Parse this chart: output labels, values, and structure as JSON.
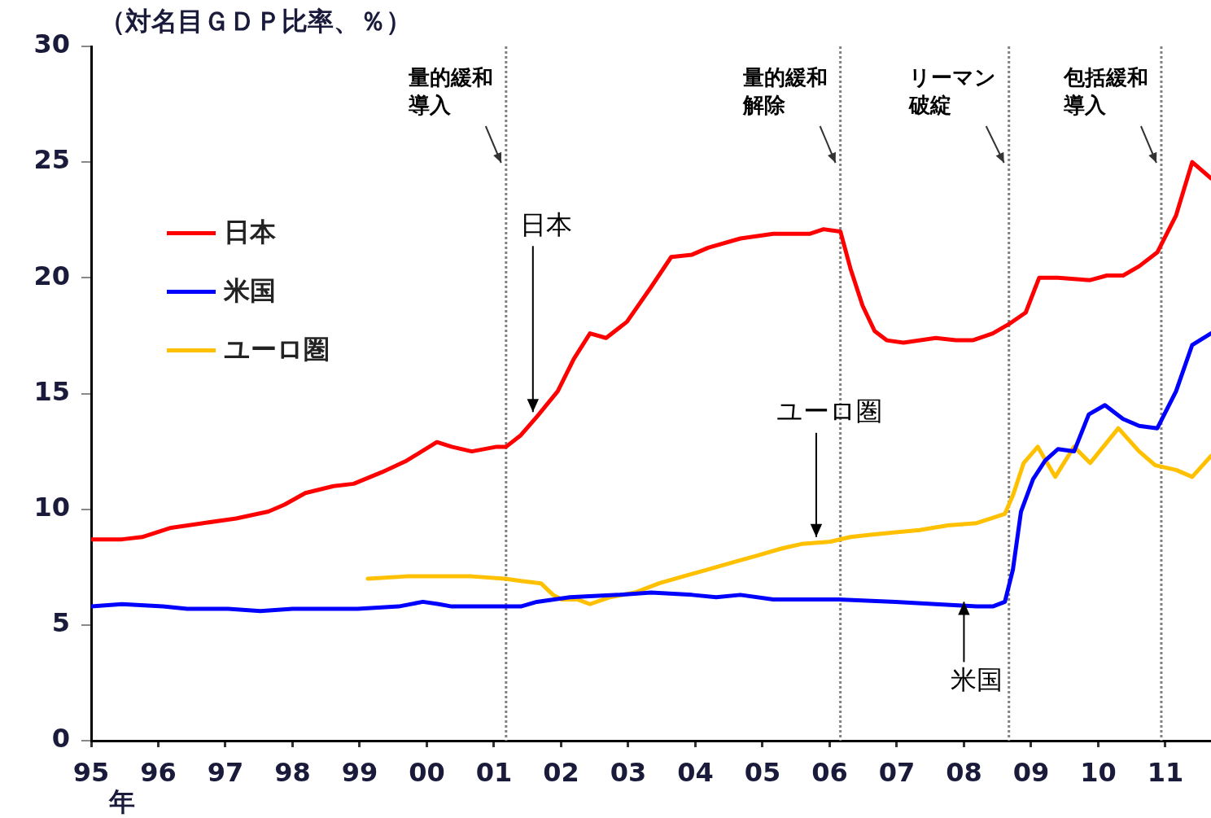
{
  "chart_data": {
    "type": "line",
    "ylabel": "（対名目ＧＤＰ比率、％）",
    "xlabel": "年",
    "xlim": [
      1995,
      2011.68
    ],
    "xticks": [
      {
        "value": 1995,
        "label": "95"
      },
      {
        "value": 1996,
        "label": "96"
      },
      {
        "value": 1997,
        "label": "97"
      },
      {
        "value": 1998,
        "label": "98"
      },
      {
        "value": 1999,
        "label": "99"
      },
      {
        "value": 2000,
        "label": "00"
      },
      {
        "value": 2001,
        "label": "01"
      },
      {
        "value": 2002,
        "label": "02"
      },
      {
        "value": 2003,
        "label": "03"
      },
      {
        "value": 2004,
        "label": "04"
      },
      {
        "value": 2005,
        "label": "05"
      },
      {
        "value": 2006,
        "label": "06"
      },
      {
        "value": 2007,
        "label": "07"
      },
      {
        "value": 2008,
        "label": "08"
      },
      {
        "value": 2009,
        "label": "09"
      },
      {
        "value": 2010,
        "label": "10"
      },
      {
        "value": 2011,
        "label": "11"
      }
    ],
    "ylim": [
      0,
      30
    ],
    "yticks": [
      0,
      5,
      10,
      15,
      20,
      25,
      30
    ],
    "grid": false,
    "legend": "top left",
    "series": [
      {
        "name": "日本",
        "color": "#ff0000",
        "x": [
          1995.0,
          1995.46,
          1995.76,
          1996.19,
          1996.67,
          1997.16,
          1997.64,
          1997.88,
          1998.19,
          1998.61,
          1998.91,
          1999.33,
          1999.7,
          2000.15,
          2000.37,
          2000.67,
          2001.04,
          2001.18,
          2001.4,
          2001.64,
          2001.95,
          2002.19,
          2002.43,
          2002.67,
          2002.98,
          2003.34,
          2003.64,
          2003.95,
          2004.19,
          2004.67,
          2005.16,
          2005.7,
          2005.91,
          2006.16,
          2006.31,
          2006.49,
          2006.67,
          2006.85,
          2007.1,
          2007.58,
          2007.88,
          2008.13,
          2008.43,
          2008.67,
          2008.92,
          2009.12,
          2009.4,
          2009.88,
          2010.13,
          2010.37,
          2010.61,
          2010.88,
          2011.16,
          2011.4,
          2011.68
        ],
        "values": [
          8.7,
          8.7,
          8.8,
          9.2,
          9.4,
          9.6,
          9.9,
          10.2,
          10.7,
          11.0,
          11.1,
          11.6,
          12.1,
          12.9,
          12.7,
          12.5,
          12.7,
          12.7,
          13.2,
          14.0,
          15.1,
          16.5,
          17.6,
          17.4,
          18.1,
          19.6,
          20.9,
          21.0,
          21.3,
          21.7,
          21.9,
          21.9,
          22.1,
          22.0,
          20.4,
          18.8,
          17.7,
          17.3,
          17.2,
          17.4,
          17.3,
          17.3,
          17.6,
          18.0,
          18.5,
          20.0,
          20.0,
          19.9,
          20.1,
          20.1,
          20.5,
          21.1,
          22.7,
          25.0,
          24.3
        ]
      },
      {
        "name": "米国",
        "color": "#0000ff",
        "x": [
          1995.0,
          1995.46,
          1996.07,
          1996.43,
          1997.04,
          1997.52,
          1998.0,
          1998.97,
          1999.58,
          1999.94,
          2000.18,
          2000.37,
          2001.04,
          2001.4,
          2001.64,
          2002.13,
          2002.85,
          2003.34,
          2003.95,
          2004.31,
          2004.67,
          2005.16,
          2005.76,
          2006.13,
          2006.98,
          2007.58,
          2008.19,
          2008.43,
          2008.61,
          2008.73,
          2008.85,
          2009.03,
          2009.21,
          2009.4,
          2009.64,
          2009.86,
          2010.1,
          2010.37,
          2010.61,
          2010.88,
          2011.16,
          2011.4,
          2011.68
        ],
        "values": [
          5.8,
          5.9,
          5.8,
          5.7,
          5.7,
          5.6,
          5.7,
          5.7,
          5.8,
          6.0,
          5.9,
          5.8,
          5.8,
          5.8,
          6.0,
          6.2,
          6.3,
          6.4,
          6.3,
          6.2,
          6.3,
          6.1,
          6.1,
          6.1,
          6.0,
          5.9,
          5.8,
          5.8,
          6.0,
          7.4,
          9.9,
          11.3,
          12.1,
          12.6,
          12.5,
          14.1,
          14.5,
          13.9,
          13.6,
          13.5,
          15.1,
          17.1,
          17.6
        ]
      },
      {
        "name": "ユーロ圏",
        "color": "#ffc000",
        "x": [
          1999.12,
          1999.7,
          2000.19,
          2000.67,
          2001.16,
          2001.4,
          2001.7,
          2001.88,
          2002.01,
          2002.25,
          2002.43,
          2002.73,
          2003.1,
          2003.46,
          2003.82,
          2004.19,
          2004.55,
          2004.92,
          2005.28,
          2005.58,
          2006.01,
          2006.31,
          2006.61,
          2006.98,
          2007.34,
          2007.76,
          2008.19,
          2008.61,
          2008.73,
          2008.89,
          2009.1,
          2009.36,
          2009.64,
          2009.88,
          2010.3,
          2010.61,
          2010.85,
          2011.16,
          2011.4,
          2011.68
        ],
        "values": [
          7.0,
          7.1,
          7.1,
          7.1,
          7.0,
          6.9,
          6.8,
          6.3,
          6.1,
          6.1,
          5.9,
          6.2,
          6.4,
          6.8,
          7.1,
          7.4,
          7.7,
          8.0,
          8.3,
          8.5,
          8.6,
          8.8,
          8.9,
          9.0,
          9.1,
          9.3,
          9.4,
          9.8,
          10.6,
          12.0,
          12.7,
          11.4,
          12.7,
          12.0,
          13.5,
          12.5,
          11.9,
          11.7,
          11.4,
          12.3
        ]
      }
    ],
    "ref_lines": [
      {
        "axis": "x",
        "value": 2001.18,
        "label": "量的緩和導入",
        "color": "#808080",
        "line_style": "dotted"
      },
      {
        "axis": "x",
        "value": 2006.16,
        "label": "量的緩和解除",
        "color": "#808080",
        "line_style": "dotted"
      },
      {
        "axis": "x",
        "value": 2008.67,
        "label": "リーマン破綻",
        "color": "#808080",
        "line_style": "dotted"
      },
      {
        "axis": "x",
        "value": 2010.94,
        "label": "包括緩和導入",
        "color": "#808080",
        "line_style": "dotted"
      }
    ],
    "annotations": [
      {
        "text": "日本",
        "x": 2001.58,
        "y": 14.2
      },
      {
        "text": "ユーロ圏",
        "x": 2005.8,
        "y": 8.8
      },
      {
        "text": "米国",
        "x": 2008.0,
        "y": 6.0
      }
    ]
  }
}
